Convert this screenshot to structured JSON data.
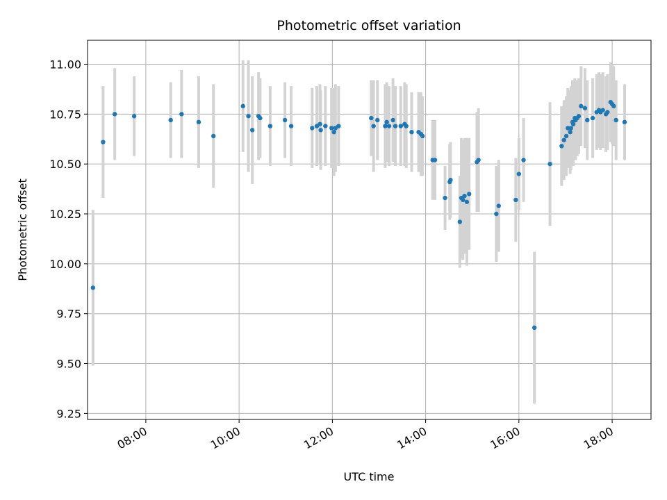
{
  "chart_data": {
    "type": "scatter",
    "title": "Photometric offset variation",
    "xlabel": "UTC time",
    "ylabel": "Photometric offset",
    "xlim": [
      "06:45",
      "18:50"
    ],
    "ylim": [
      9.22,
      11.12
    ],
    "grid": true,
    "xticks": [
      "08:00",
      "10:00",
      "12:00",
      "14:00",
      "16:00",
      "18:00"
    ],
    "yticks": [
      "9.25",
      "9.50",
      "9.75",
      "10.00",
      "10.25",
      "10.50",
      "10.75",
      "11.00"
    ],
    "colors": {
      "points": "#1f77b4",
      "errorbars": "#d3d3d3",
      "grid": "#b0b0b0"
    },
    "series": [
      {
        "x": [
          "06:52",
          "07:05",
          "07:20",
          "07:45",
          "08:32",
          "08:46",
          "09:08",
          "09:27",
          "10:05",
          "10:12",
          "10:17",
          "10:25",
          "10:27",
          "10:40",
          "10:59",
          "11:07",
          "11:34",
          "11:40",
          "11:44",
          "11:45",
          "11:51",
          "11:59",
          "12:02",
          "12:04",
          "12:08",
          "12:50",
          "12:53",
          "12:58",
          "13:08",
          "13:10",
          "13:13",
          "13:18",
          "13:21",
          "13:28",
          "13:33",
          "13:35",
          "13:42",
          "13:51",
          "13:54",
          "13:56",
          "14:09",
          "14:12",
          "14:25",
          "14:31",
          "14:32",
          "14:44",
          "14:46",
          "14:48",
          "14:50",
          "14:53",
          "14:56",
          "15:06",
          "15:08",
          "15:31",
          "15:34",
          "15:56",
          "16:00",
          "16:06",
          "16:20",
          "16:40",
          "16:55",
          "16:58",
          "17:01",
          "17:03",
          "17:06",
          "17:07",
          "17:09",
          "17:10",
          "17:12",
          "17:13",
          "17:15",
          "17:17",
          "17:20",
          "17:25",
          "17:28",
          "17:35",
          "17:40",
          "17:43",
          "17:45",
          "17:48",
          "17:52",
          "17:54",
          "17:58",
          "18:00",
          "18:02",
          "18:05",
          "18:16"
        ],
        "y": [
          9.88,
          10.61,
          10.75,
          10.74,
          10.72,
          10.75,
          10.71,
          10.64,
          10.79,
          10.74,
          10.67,
          10.74,
          10.73,
          10.69,
          10.72,
          10.69,
          10.68,
          10.69,
          10.7,
          10.67,
          10.69,
          10.68,
          10.66,
          10.68,
          10.69,
          10.73,
          10.69,
          10.72,
          10.69,
          10.71,
          10.69,
          10.72,
          10.69,
          10.69,
          10.7,
          10.69,
          10.66,
          10.66,
          10.65,
          10.64,
          10.52,
          10.52,
          10.33,
          10.41,
          10.42,
          10.21,
          10.33,
          10.32,
          10.34,
          10.31,
          10.35,
          10.51,
          10.52,
          10.25,
          10.29,
          10.32,
          10.45,
          10.52,
          9.68,
          10.5,
          10.59,
          10.62,
          10.64,
          10.68,
          10.66,
          10.68,
          10.71,
          10.7,
          10.73,
          10.72,
          10.73,
          10.74,
          10.79,
          10.78,
          10.72,
          10.73,
          10.76,
          10.77,
          10.76,
          10.77,
          10.75,
          10.76,
          10.81,
          10.8,
          10.79,
          10.72,
          10.71
        ],
        "err": [
          0.39,
          0.28,
          0.23,
          0.2,
          0.19,
          0.22,
          0.23,
          0.26,
          0.23,
          0.28,
          0.27,
          0.22,
          0.2,
          0.2,
          0.19,
          0.2,
          0.2,
          0.2,
          0.2,
          0.2,
          0.2,
          0.2,
          0.22,
          0.22,
          0.2,
          0.19,
          0.23,
          0.2,
          0.21,
          0.2,
          0.2,
          0.21,
          0.2,
          0.2,
          0.21,
          0.21,
          0.2,
          0.2,
          0.21,
          0.2,
          0.2,
          0.2,
          0.16,
          0.19,
          0.19,
          0.23,
          0.3,
          0.3,
          0.29,
          0.32,
          0.28,
          0.25,
          0.26,
          0.24,
          0.23,
          0.21,
          0.18,
          0.21,
          0.38,
          0.31,
          0.2,
          0.2,
          0.2,
          0.2,
          0.21,
          0.21,
          0.21,
          0.21,
          0.2,
          0.2,
          0.19,
          0.19,
          0.2,
          0.2,
          0.2,
          0.2,
          0.19,
          0.19,
          0.19,
          0.19,
          0.19,
          0.19,
          0.2,
          0.2,
          0.2,
          0.2,
          0.19
        ]
      }
    ]
  }
}
